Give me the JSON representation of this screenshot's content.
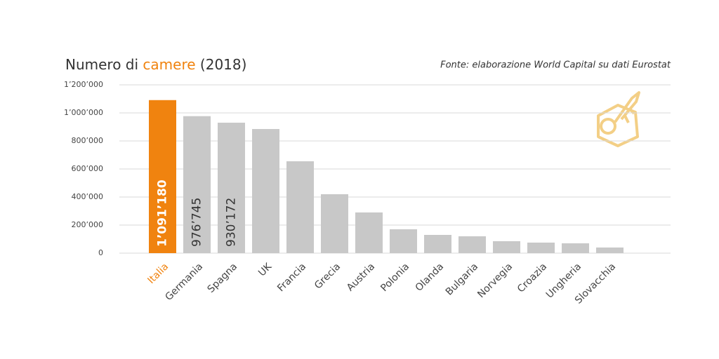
{
  "chart_data": {
    "type": "bar",
    "title": {
      "prefix": "Numero di",
      "highlight": "camere",
      "suffix": "(2018)"
    },
    "source": "Fonte: elaborazione World Capital su dati Eurostat",
    "categories": [
      "Italia",
      "Germania",
      "Spagna",
      "UK",
      "Francia",
      "Grecia",
      "Austria",
      "Polonia",
      "Olanda",
      "Bulgaria",
      "Norvegia",
      "Croazia",
      "Ungheria",
      "Slovacchia"
    ],
    "values": [
      1091180,
      976745,
      930172,
      885000,
      655000,
      420000,
      290000,
      170000,
      130000,
      120000,
      85000,
      75000,
      70000,
      40000
    ],
    "value_labels": [
      "1’091’180",
      "976’745",
      "930’172",
      null,
      null,
      null,
      null,
      null,
      null,
      null,
      null,
      null,
      null,
      null
    ],
    "color": "#c8c8c8",
    "highlight_color": "#f0830f",
    "highlight_index": 0,
    "ylim": [
      0,
      1200000
    ],
    "yticks": [
      0,
      {
        "value": 200000,
        "label": "200’000"
      },
      {
        "value": 400000,
        "label": "400’000"
      },
      {
        "value": 600000,
        "label": "600’000"
      },
      {
        "value": 800000,
        "label": "800’000"
      },
      {
        "value": 1000000,
        "label": "1’000’000"
      },
      {
        "value": 1200000,
        "label": "1’200’000"
      }
    ],
    "grid": true
  }
}
